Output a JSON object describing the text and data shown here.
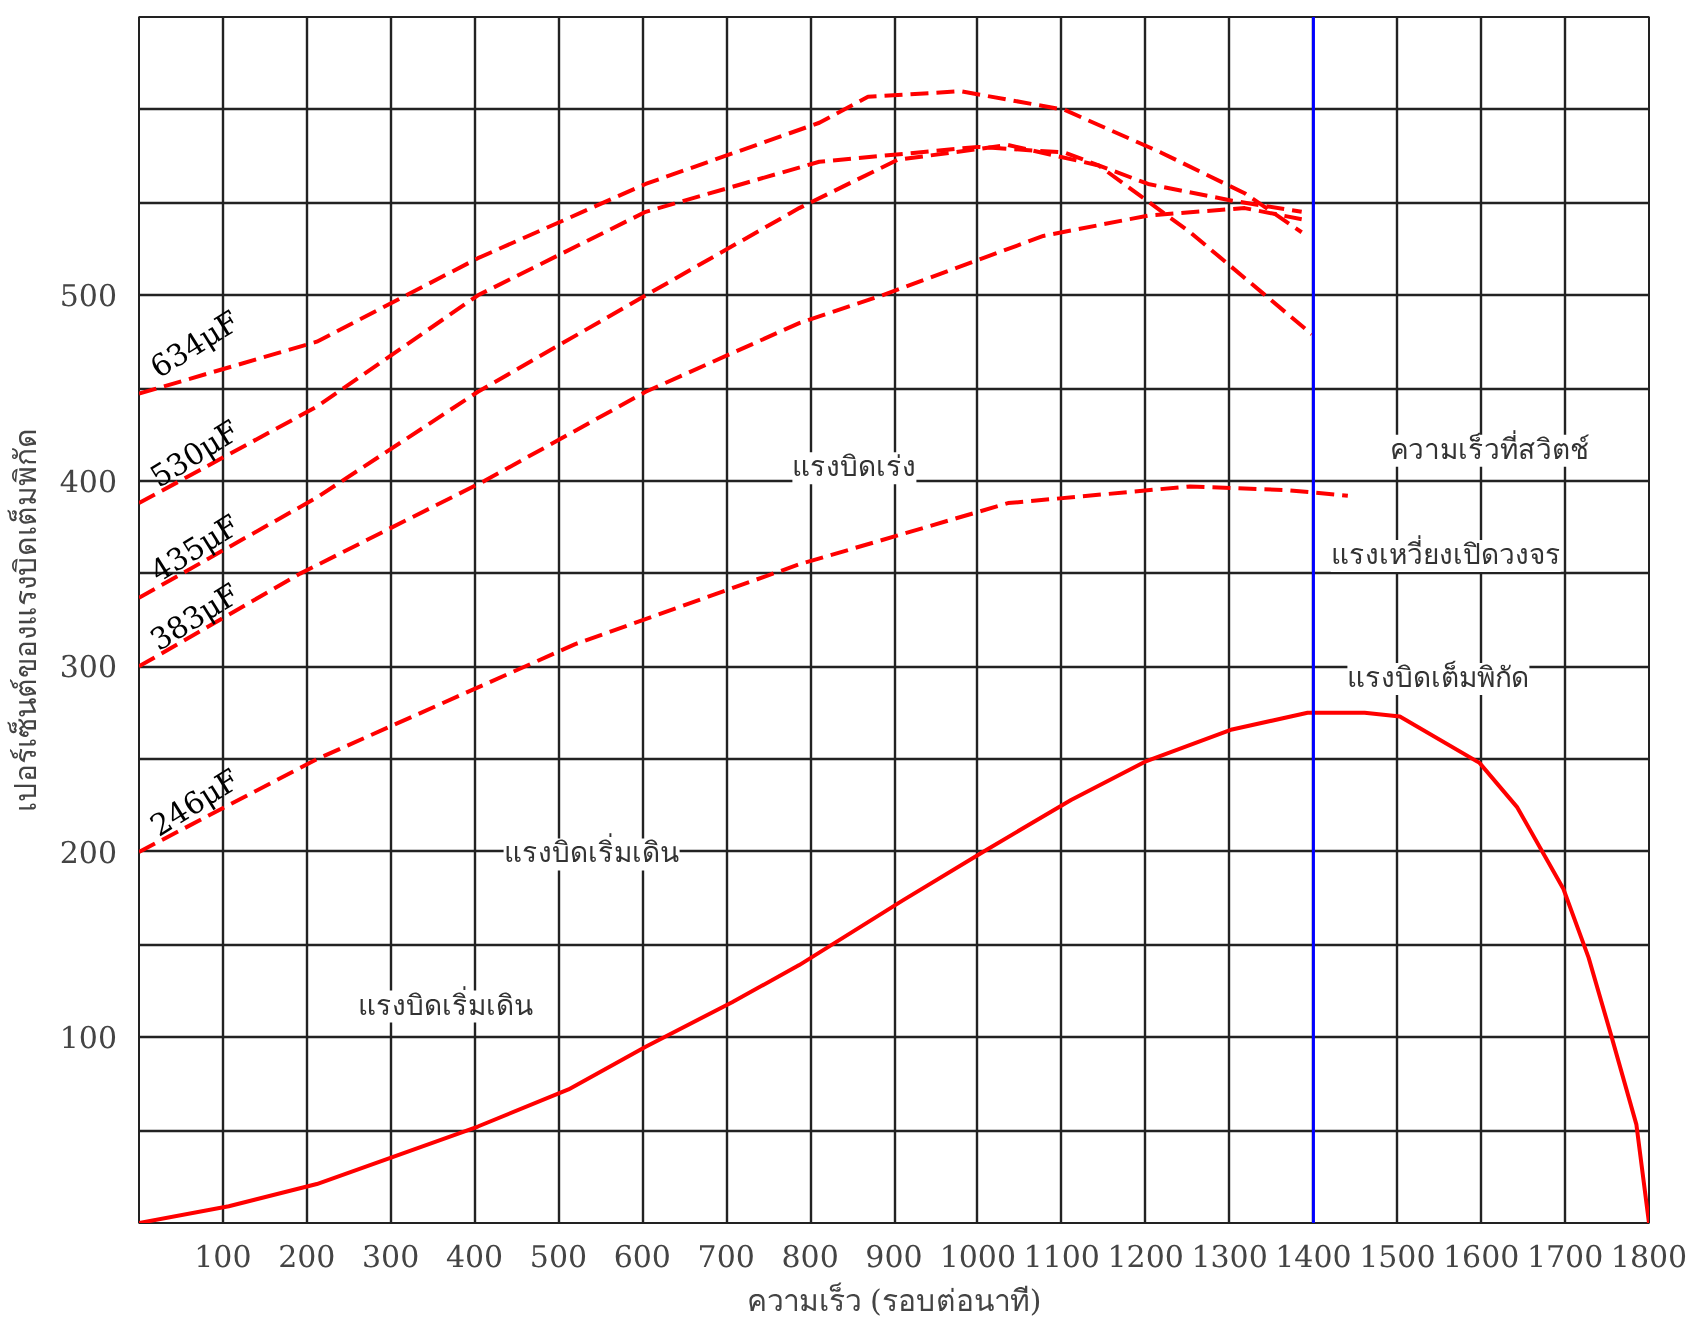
{
  "chart_data": {
    "type": "line",
    "xlabel": "ความเร็ว (รอบต่อนาที)",
    "ylabel": "เปอร์เซ็นต์ของแรงบิดเต็มพิกัด",
    "xlim": [
      0,
      1800
    ],
    "ylim": [
      0,
      650
    ],
    "xticks": [
      {
        "value": 0,
        "label": null
      },
      100,
      200,
      300,
      400,
      500,
      600,
      700,
      800,
      900,
      1000,
      1100,
      1200,
      1300,
      1400,
      1500,
      1600,
      1700,
      1800
    ],
    "yticks": [
      {
        "value": 0,
        "label": null
      },
      {
        "value": 50,
        "label": null
      },
      100,
      {
        "value": 150,
        "label": null
      },
      200,
      {
        "value": 250,
        "label": null
      },
      300,
      {
        "value": 350,
        "label": null
      },
      400,
      {
        "value": 450,
        "label": null
      },
      500,
      {
        "value": 550,
        "label": null
      },
      {
        "value": 600,
        "label": null
      }
    ],
    "grid": true,
    "series": [
      {
        "name": "634μF",
        "color": "#ff0000",
        "line_style": "dashed",
        "x": [
          0,
          212,
          404,
          604,
          811,
          869,
          979,
          1103,
          1218,
          1318,
          1386
        ],
        "values": [
          447,
          475,
          520,
          560,
          593,
          607,
          610,
          600,
          577,
          555,
          534
        ]
      },
      {
        "name": "530μF",
        "color": "#ff0000",
        "line_style": "dashed",
        "x": [
          0,
          212,
          404,
          604,
          811,
          1000,
          1103,
          1203,
          1303,
          1386
        ],
        "values": [
          388,
          440,
          500,
          545,
          572,
          580,
          577,
          560,
          551,
          545
        ]
      },
      {
        "name": "435μF",
        "color": "#ff0000",
        "line_style": "dashed",
        "x": [
          0,
          212,
          404,
          604,
          787,
          904,
          1036,
          1144,
          1253,
          1398
        ],
        "values": [
          337,
          391,
          448,
          500,
          547,
          573,
          581,
          570,
          534,
          479
        ]
      },
      {
        "name": "383μF",
        "color": "#ff0000",
        "line_style": "dashed",
        "x": [
          0,
          192,
          412,
          604,
          787,
          886,
          1078,
          1203,
          1318,
          1386
        ],
        "values": [
          300,
          350,
          400,
          448,
          485,
          500,
          532,
          543,
          547,
          541
        ]
      },
      {
        "name": "246μF",
        "color": "#ff0000",
        "line_style": "dashed",
        "x": [
          0,
          212,
          520,
          787,
          1036,
          1253,
          1369,
          1441
        ],
        "values": [
          200,
          250,
          312,
          355,
          388,
          397,
          395,
          392
        ]
      },
      {
        "color": "#ff0000",
        "line_style": "solid",
        "x": [
          0,
          107,
          212,
          404,
          512,
          604,
          707,
          787,
          911,
          1006,
          1111,
          1201,
          1303,
          1393,
          1461,
          1503,
          1598,
          1643,
          1698,
          1728,
          1755,
          1785,
          1800
        ],
        "values": [
          0,
          9,
          21,
          52,
          72,
          95,
          119,
          139,
          174,
          200,
          228,
          249,
          266,
          275,
          275,
          273,
          248,
          224,
          180,
          143,
          101,
          53,
          0
        ]
      }
    ],
    "ref_lines": [
      {
        "axis": "x",
        "value": 1400,
        "color": "#0000ff"
      }
    ],
    "annotations": [
      "แรงบิดเริ่มเดิน",
      "แรงบิดเริ่มเดิน",
      "แรงบิดเร่ง",
      "ความเร็วที่สวิตช์",
      "แรงเหวี่ยงเปิดวงจร",
      "แรงบิดเต็มพิกัด"
    ]
  }
}
